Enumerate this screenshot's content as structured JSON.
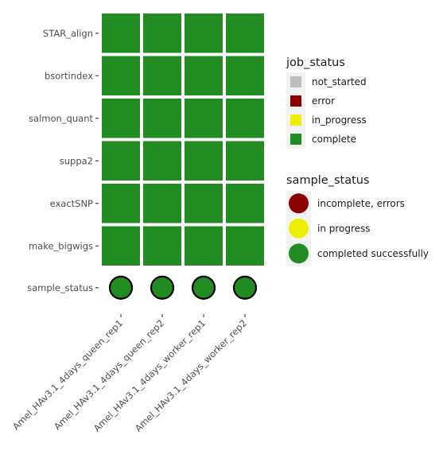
{
  "chart_data": {
    "type": "heatmap",
    "samples": [
      "Amel_HAv3.1_4days_queen_rep1",
      "Amel_HAv3.1_4days_queen_rep2",
      "Amel_HAv3.1_4days_worker_rep1",
      "Amel_HAv3.1_4days_worker_rep2"
    ],
    "jobs": [
      "STAR_align",
      "bsortindex",
      "salmon_quant",
      "suppa2",
      "exactSNP",
      "make_bigwigs"
    ],
    "sample_status_row_label": "sample_status",
    "job_status_matrix": [
      [
        "complete",
        "complete",
        "complete",
        "complete"
      ],
      [
        "complete",
        "complete",
        "complete",
        "complete"
      ],
      [
        "complete",
        "complete",
        "complete",
        "complete"
      ],
      [
        "complete",
        "complete",
        "complete",
        "complete"
      ],
      [
        "complete",
        "complete",
        "complete",
        "complete"
      ],
      [
        "complete",
        "complete",
        "complete",
        "complete"
      ]
    ],
    "sample_status": [
      "completed successfully",
      "completed successfully",
      "completed successfully",
      "completed successfully"
    ],
    "legend_job_status": {
      "title": "job_status",
      "entries": [
        {
          "label": "not_started",
          "color": "#bebebe"
        },
        {
          "label": "error",
          "color": "#8b0000"
        },
        {
          "label": "in_progress",
          "color": "#eeee00"
        },
        {
          "label": "complete",
          "color": "#228b22"
        }
      ]
    },
    "legend_sample_status": {
      "title": "sample_status",
      "entries": [
        {
          "label": "incomplete, errors",
          "color": "#8b0000"
        },
        {
          "label": "in progress",
          "color": "#eeee00"
        },
        {
          "label": "completed successfully",
          "color": "#228b22"
        }
      ]
    },
    "legend_placement": "right",
    "grid": false
  }
}
